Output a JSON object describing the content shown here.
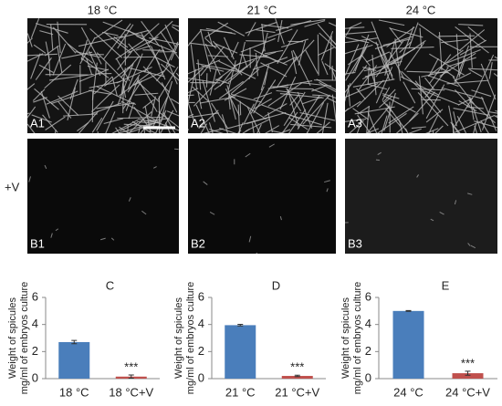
{
  "figure": {
    "column_titles": [
      "18 °C",
      "21 °C",
      "24 °C"
    ],
    "row_label": "+V",
    "image_labels": [
      [
        "A1",
        "A2",
        "A3"
      ],
      [
        "B1",
        "B2",
        "B3"
      ]
    ]
  },
  "chart_data": [
    {
      "type": "bar",
      "panel": "C",
      "ylabel": [
        "Weight of spicules",
        "mg/ml of embryos culture"
      ],
      "categories": [
        "18 °C",
        "18 °C+V"
      ],
      "values": [
        2.7,
        0.15
      ],
      "errors": [
        0.12,
        0.12
      ],
      "colors": [
        "#4a7ebb",
        "#c0504d"
      ],
      "significance": [
        null,
        "***"
      ],
      "ylim": [
        0,
        6
      ],
      "yticks": [
        0,
        2,
        4,
        6
      ]
    },
    {
      "type": "bar",
      "panel": "D",
      "ylabel": [
        "Weight of spicules",
        "mg/ml of embryos culture"
      ],
      "categories": [
        "21 °C",
        "21 °C+V"
      ],
      "values": [
        3.95,
        0.2
      ],
      "errors": [
        0.06,
        0.05
      ],
      "colors": [
        "#4a7ebb",
        "#c0504d"
      ],
      "significance": [
        null,
        "***"
      ],
      "ylim": [
        0,
        6
      ],
      "yticks": [
        0,
        2,
        4,
        6
      ]
    },
    {
      "type": "bar",
      "panel": "E",
      "ylabel": [
        "Weight of spicules",
        "mg/ml of embryos culture"
      ],
      "categories": [
        "24 °C",
        "24 °C+V"
      ],
      "values": [
        5.0,
        0.4
      ],
      "errors": [
        0.03,
        0.15
      ],
      "colors": [
        "#4a7ebb",
        "#c0504d"
      ],
      "significance": [
        null,
        "***"
      ],
      "ylim": [
        0,
        6
      ],
      "yticks": [
        0,
        2,
        4,
        6
      ]
    }
  ]
}
